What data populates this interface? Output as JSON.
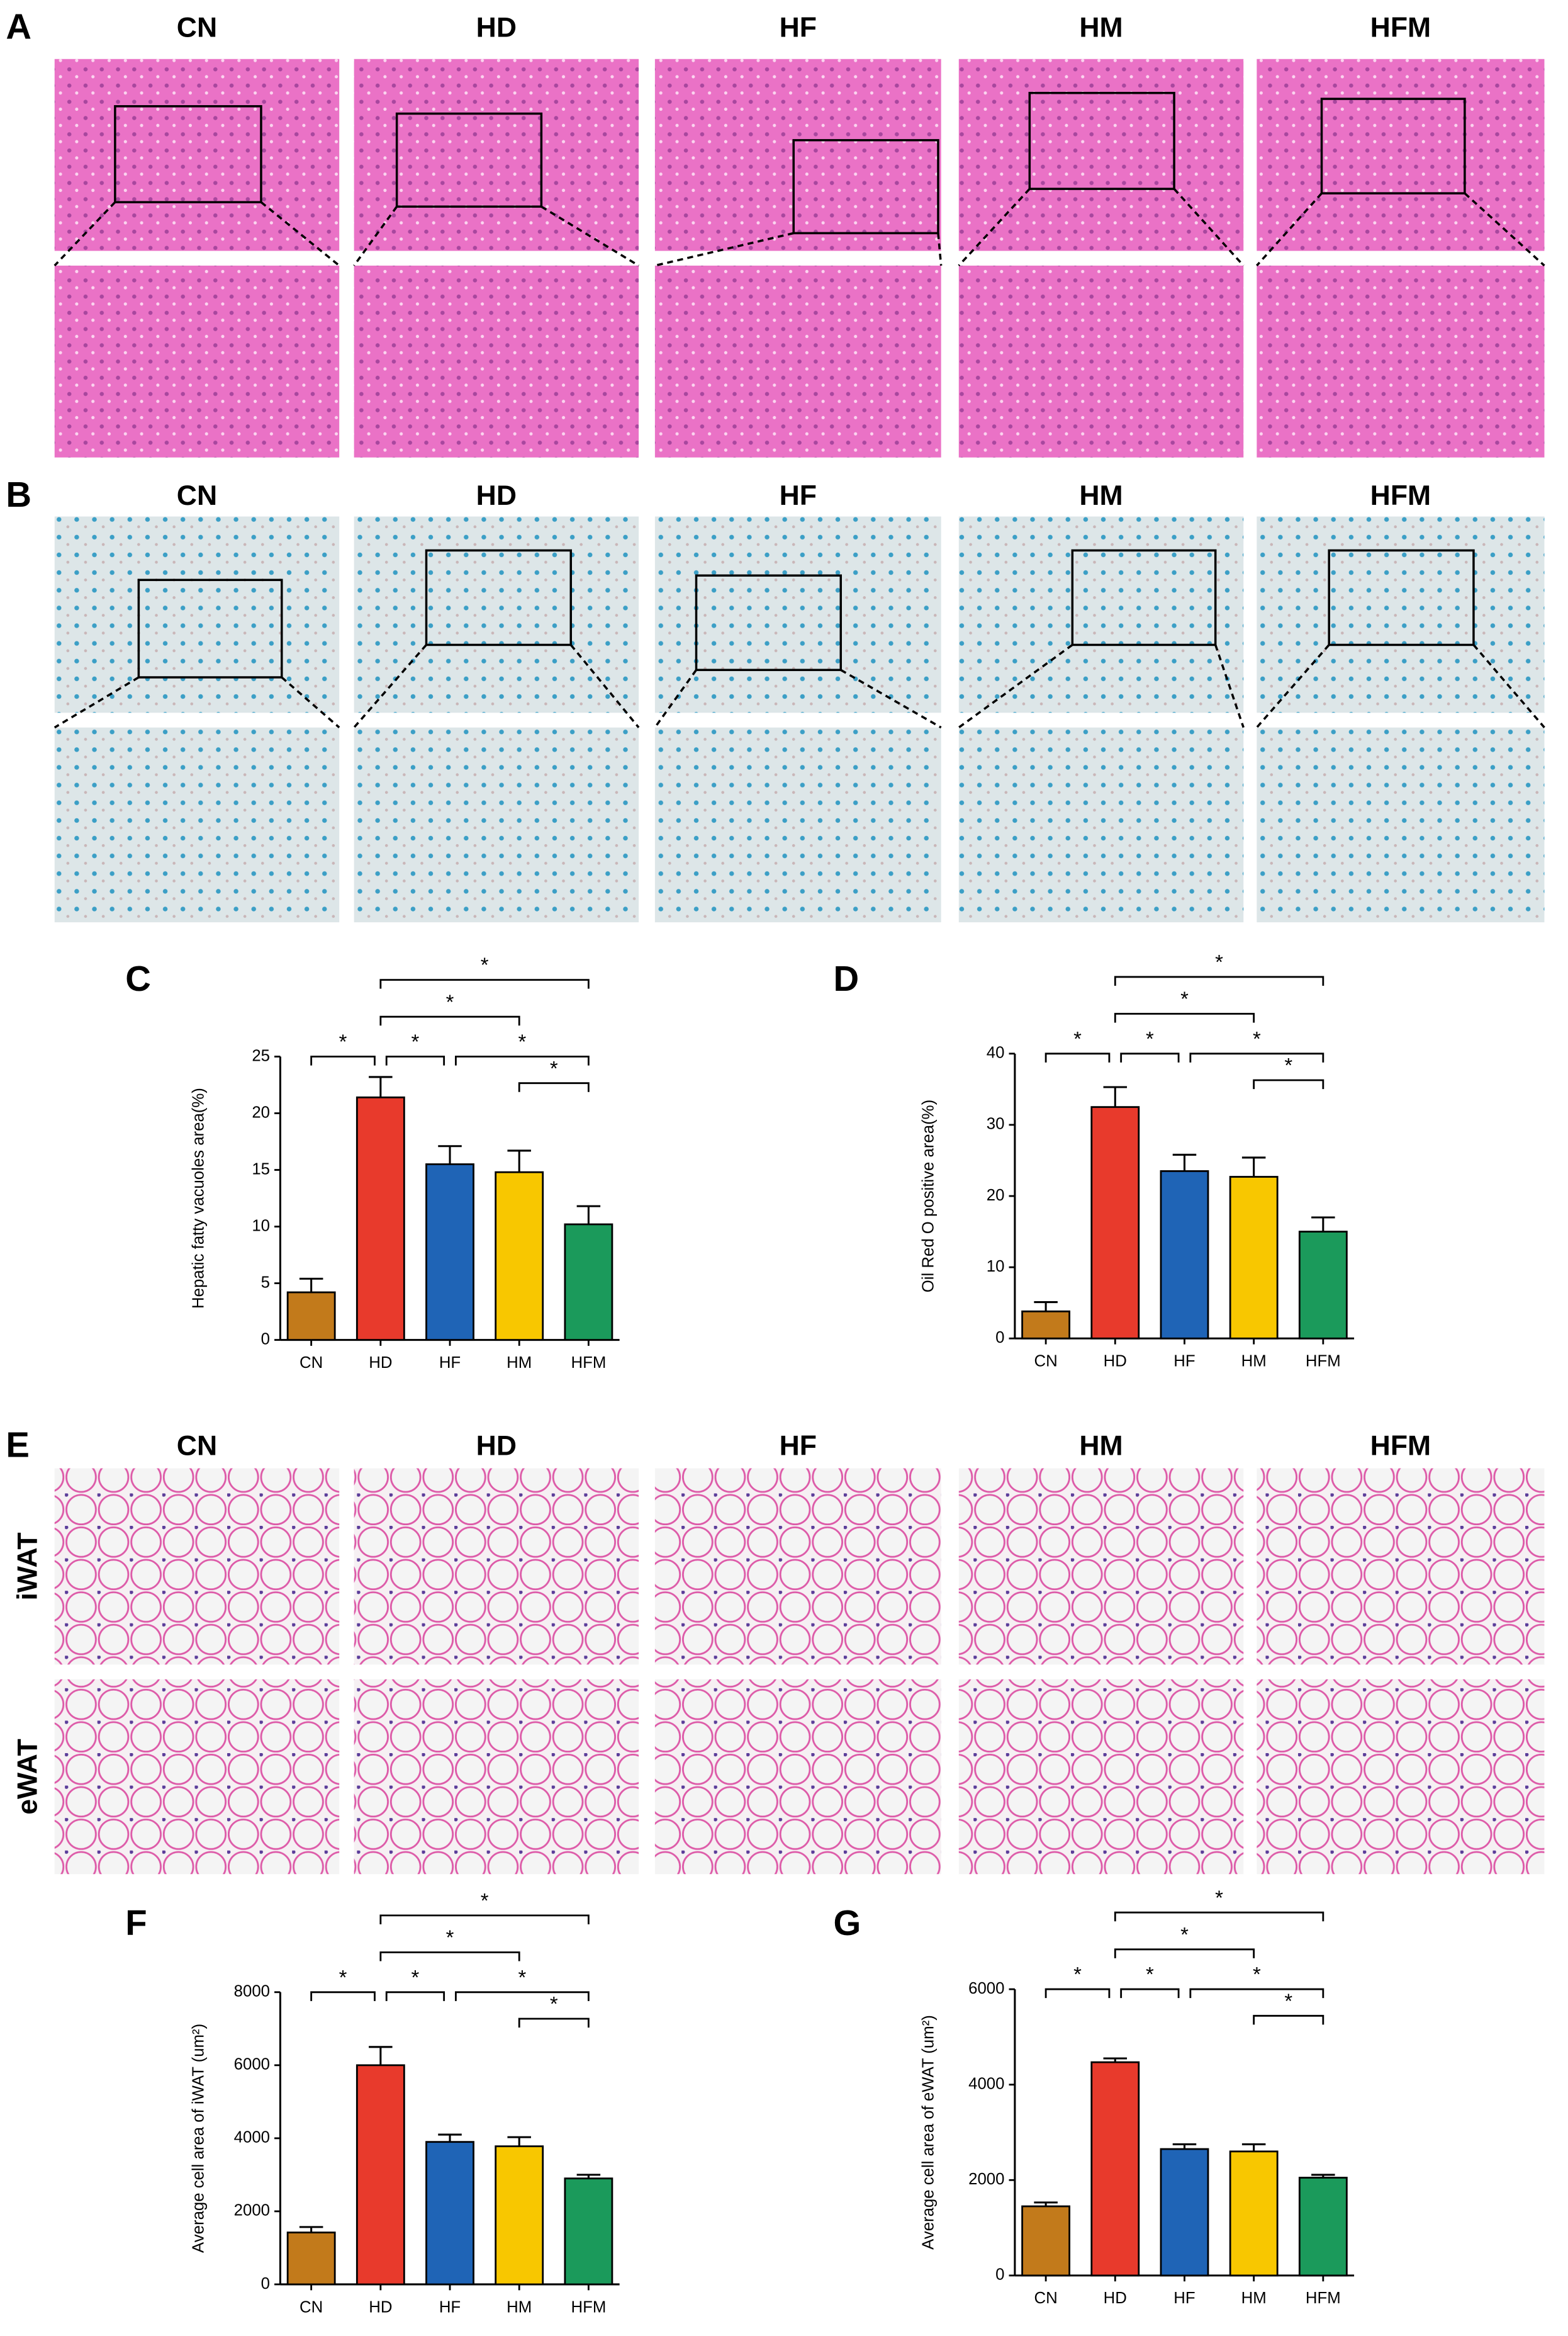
{
  "panels": [
    {
      "label": "A",
      "columns": [
        "CN",
        "HD",
        "HF",
        "HM",
        "HFM"
      ]
    },
    {
      "label": "B",
      "columns": [
        "CN",
        "HD",
        "HF",
        "HM",
        "HFM"
      ]
    },
    {
      "label": "E",
      "columns": [
        "CN",
        "HD",
        "HF",
        "HM",
        "HFM"
      ],
      "rows": [
        "iWAT",
        "eWAT"
      ]
    }
  ],
  "chart_data": [
    {
      "type": "bar",
      "panel_label": "C",
      "ylabel": "Hepatic fatty vacuoles area(%)",
      "categories": [
        "CN",
        "HD",
        "HF",
        "HM",
        "HFM"
      ],
      "values": [
        4.2,
        21.4,
        15.5,
        14.8,
        10.2
      ],
      "errors": [
        1.2,
        1.8,
        1.6,
        1.9,
        1.6
      ],
      "colors": [
        "#c27a1b",
        "#e83a2c",
        "#1f64b6",
        "#f8c700",
        "#1b9a5b"
      ],
      "ylim": [
        0,
        25
      ],
      "yticks": [
        0,
        5,
        10,
        15,
        20,
        25
      ],
      "comparisons": [
        {
          "groups": [
            "CN",
            "HD"
          ],
          "label": "*"
        },
        {
          "groups": [
            "HD",
            "HF"
          ],
          "label": "*"
        },
        {
          "groups": [
            "HD",
            "HM"
          ],
          "label": "*"
        },
        {
          "groups": [
            "HD",
            "HFM"
          ],
          "label": "*"
        },
        {
          "groups": [
            "HF",
            "HFM"
          ],
          "label": "*"
        },
        {
          "groups": [
            "HM",
            "HFM"
          ],
          "label": "*"
        }
      ]
    },
    {
      "type": "bar",
      "panel_label": "D",
      "ylabel": "Oil Red O positive area(%)",
      "categories": [
        "CN",
        "HD",
        "HF",
        "HM",
        "HFM"
      ],
      "values": [
        3.8,
        32.5,
        23.5,
        22.7,
        15.0
      ],
      "errors": [
        1.3,
        2.8,
        2.3,
        2.7,
        2.0
      ],
      "colors": [
        "#c27a1b",
        "#e83a2c",
        "#1f64b6",
        "#f8c700",
        "#1b9a5b"
      ],
      "ylim": [
        0,
        40
      ],
      "yticks": [
        0,
        10,
        20,
        30,
        40
      ],
      "comparisons": [
        {
          "groups": [
            "CN",
            "HD"
          ],
          "label": "*"
        },
        {
          "groups": [
            "HD",
            "HF"
          ],
          "label": "*"
        },
        {
          "groups": [
            "HD",
            "HM"
          ],
          "label": "*"
        },
        {
          "groups": [
            "HD",
            "HFM"
          ],
          "label": "*"
        },
        {
          "groups": [
            "HF",
            "HFM"
          ],
          "label": "*"
        },
        {
          "groups": [
            "HM",
            "HFM"
          ],
          "label": "*"
        }
      ]
    },
    {
      "type": "bar",
      "panel_label": "F",
      "ylabel": "Average cell area of iWAT (um²)",
      "categories": [
        "CN",
        "HD",
        "HF",
        "HM",
        "HFM"
      ],
      "values": [
        1420,
        6000,
        3900,
        3780,
        2900
      ],
      "errors": [
        150,
        500,
        200,
        250,
        100
      ],
      "colors": [
        "#c27a1b",
        "#e83a2c",
        "#1f64b6",
        "#f8c700",
        "#1b9a5b"
      ],
      "ylim": [
        0,
        8000
      ],
      "yticks": [
        0,
        2000,
        4000,
        6000,
        8000
      ],
      "comparisons": [
        {
          "groups": [
            "CN",
            "HD"
          ],
          "label": "*"
        },
        {
          "groups": [
            "HD",
            "HF"
          ],
          "label": "*"
        },
        {
          "groups": [
            "HD",
            "HM"
          ],
          "label": "*"
        },
        {
          "groups": [
            "HD",
            "HFM"
          ],
          "label": "*"
        },
        {
          "groups": [
            "HF",
            "HFM"
          ],
          "label": "*"
        },
        {
          "groups": [
            "HM",
            "HFM"
          ],
          "label": "*"
        }
      ]
    },
    {
      "type": "bar",
      "panel_label": "G",
      "ylabel": "Average cell area of eWAT (um²)",
      "categories": [
        "CN",
        "HD",
        "HF",
        "HM",
        "HFM"
      ],
      "values": [
        1450,
        4470,
        2650,
        2600,
        2050
      ],
      "errors": [
        80,
        80,
        100,
        150,
        60
      ],
      "colors": [
        "#c27a1b",
        "#e83a2c",
        "#1f64b6",
        "#f8c700",
        "#1b9a5b"
      ],
      "ylim": [
        0,
        6000
      ],
      "yticks": [
        0,
        2000,
        4000,
        6000
      ],
      "comparisons": [
        {
          "groups": [
            "CN",
            "HD"
          ],
          "label": "*"
        },
        {
          "groups": [
            "HD",
            "HF"
          ],
          "label": "*"
        },
        {
          "groups": [
            "HD",
            "HM"
          ],
          "label": "*"
        },
        {
          "groups": [
            "HD",
            "HFM"
          ],
          "label": "*"
        },
        {
          "groups": [
            "HF",
            "HFM"
          ],
          "label": "*"
        },
        {
          "groups": [
            "HM",
            "HFM"
          ],
          "label": "*"
        }
      ]
    }
  ]
}
